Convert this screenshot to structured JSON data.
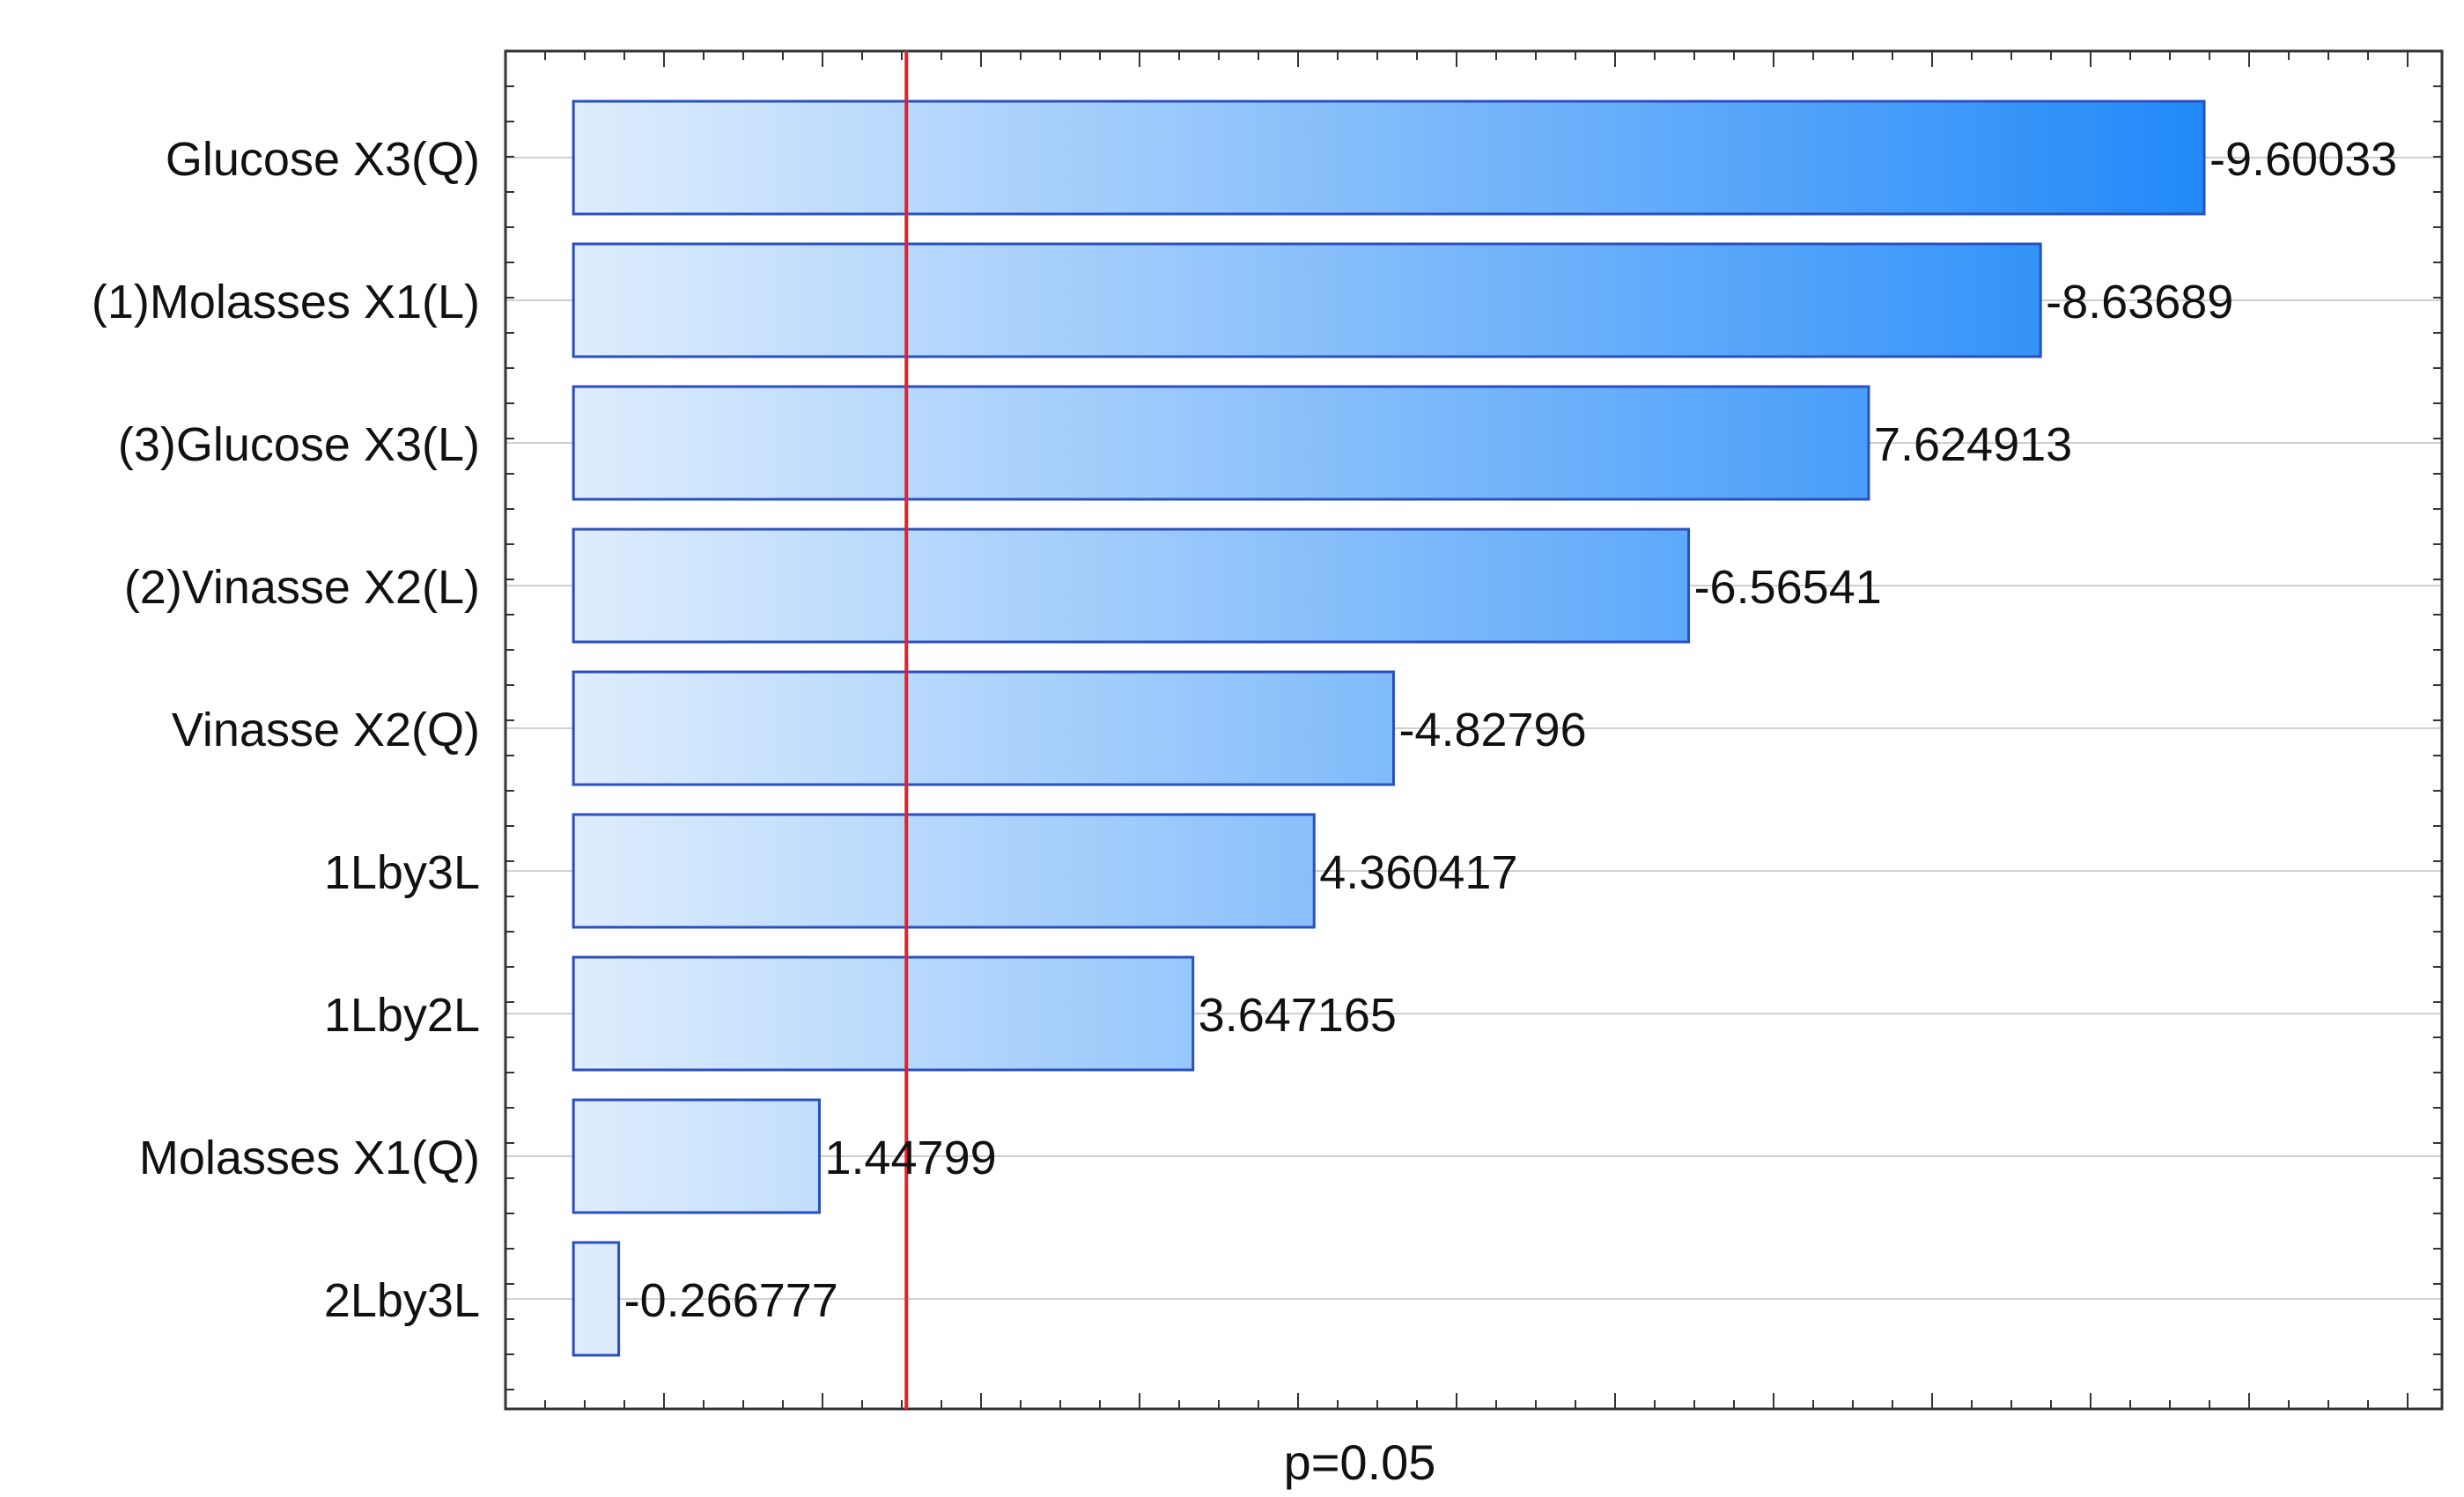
{
  "chart_data": {
    "type": "bar",
    "orientation": "horizontal",
    "title": "",
    "xlabel": "",
    "ylabel": "",
    "categories": [
      "Glucose X3(Q)",
      "(1)Molasses X1(L)",
      "(3)Glucose X3(L)",
      "(2)Vinasse X2(L)",
      "Vinasse X2(Q)",
      "1Lby3L",
      "1Lby2L",
      "Molasses X1(Q)",
      "2Lby3L"
    ],
    "values": [
      -9.60033,
      -8.63689,
      7.624913,
      -6.56541,
      -4.82796,
      4.360417,
      3.647165,
      1.44799,
      -0.266777
    ],
    "value_labels": [
      "-9.60033",
      "-8.63689",
      "7.624913",
      "-6.56541",
      "-4.82796",
      "4.360417",
      "3.647165",
      "1.44799",
      "-0.266777"
    ],
    "bar_length": "absolute value",
    "xlim": [
      -0.4,
      11.0
    ],
    "reference_line": {
      "value": 1.96,
      "label": "p=0.05",
      "color": "#e8202a"
    },
    "grid": true,
    "legend": "none",
    "bar_gradient": {
      "from": "#e6f1fd",
      "to": "#1f88f8"
    },
    "bar_border_color": "#2a4fc0"
  }
}
